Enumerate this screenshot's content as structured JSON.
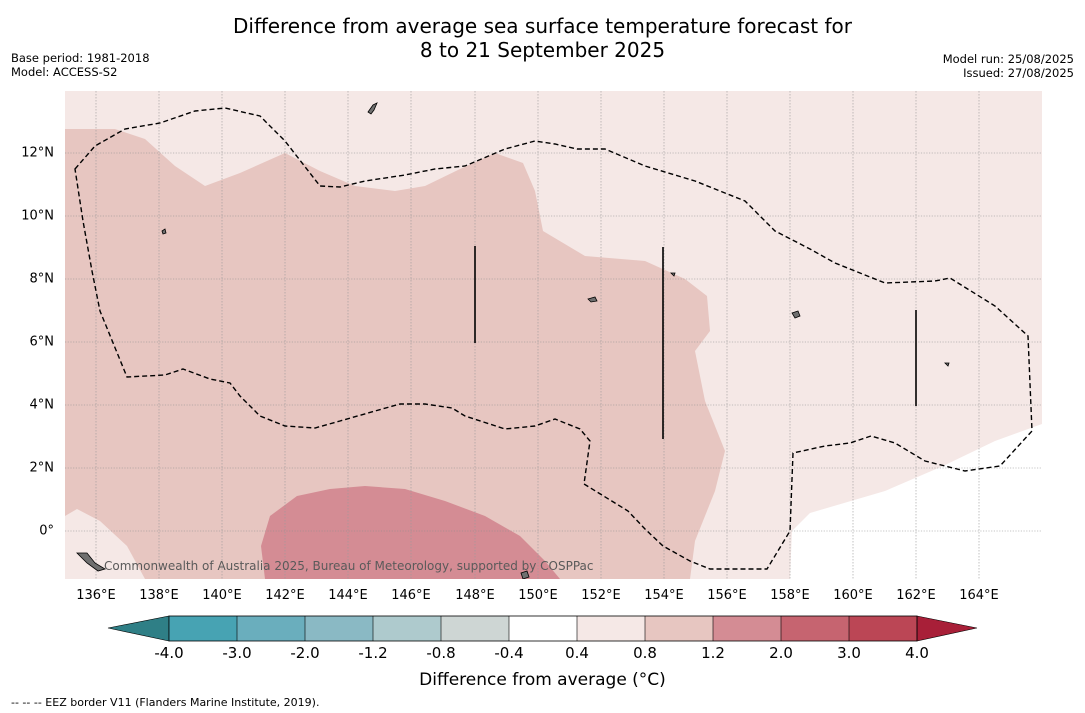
{
  "title": {
    "line1": "Difference from average sea surface temperature forecast for",
    "line2": "8 to 21 September 2025"
  },
  "meta_left": {
    "base_period": "Base period: 1981-2018",
    "model": "Model: ACCESS-S2"
  },
  "meta_right": {
    "model_run": "Model run: 25/08/2025",
    "issued": "Issued: 27/08/2025"
  },
  "axes": {
    "x_ticks": [
      "136°E",
      "138°E",
      "140°E",
      "142°E",
      "144°E",
      "146°E",
      "148°E",
      "150°E",
      "152°E",
      "154°E",
      "156°E",
      "158°E",
      "160°E",
      "162°E",
      "164°E"
    ],
    "y_ticks": [
      "12°N",
      "10°N",
      "8°N",
      "6°N",
      "4°N",
      "2°N",
      "0°"
    ]
  },
  "credit": "Commonwealth of Australia 2025, Bureau of Meteorology, supported by COSPPac",
  "colorbar": {
    "ticks": [
      "-4.0",
      "-3.0",
      "-2.0",
      "-1.2",
      "-0.8",
      "-0.4",
      "0.4",
      "0.8",
      "1.2",
      "2.0",
      "3.0",
      "4.0"
    ],
    "colors": [
      "#2f7f86",
      "#47a3b3",
      "#6aaebd",
      "#8ab9c4",
      "#aecacd",
      "#ced6d4",
      "#ffffff",
      "#f5e8e6",
      "#e7c6c1",
      "#d48c94",
      "#c66470",
      "#bb4655",
      "#a81f38"
    ],
    "label": "Difference from average (°C)"
  },
  "legend_note": "-- -- -- EEZ border V11 (Flanders Marine Institute, 2019)."
}
